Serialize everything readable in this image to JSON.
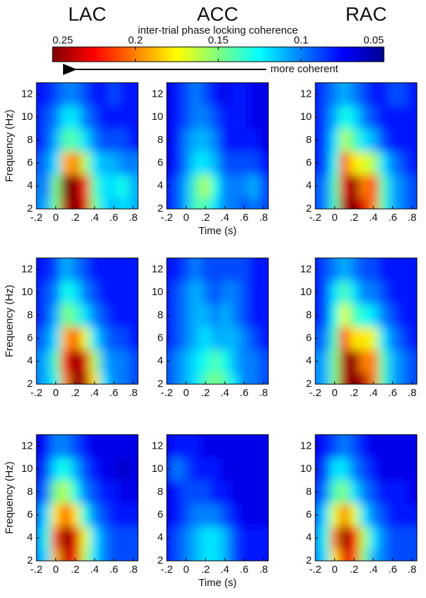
{
  "colorbar": {
    "title": "inter-trial phase locking coherence",
    "note": "more coherent",
    "clim": [
      0.25,
      0.05
    ],
    "ticks": [
      0.25,
      0.2,
      0.15,
      0.1,
      0.05
    ],
    "colormap": "jet"
  },
  "chart_data": [
    {
      "type": "heatmap",
      "title": "LAC",
      "ylabel": "Frequency (Hz)",
      "x": [
        -0.2,
        -0.1,
        0,
        0.1,
        0.2,
        0.3,
        0.4,
        0.5,
        0.6,
        0.7,
        0.8
      ],
      "y": [
        2,
        4,
        6,
        8,
        10,
        12
      ],
      "z": [
        [
          0.1,
          0.11,
          0.15,
          0.24,
          0.25,
          0.23,
          0.15,
          0.12,
          0.11,
          0.12,
          0.11
        ],
        [
          0.1,
          0.1,
          0.15,
          0.25,
          0.25,
          0.22,
          0.14,
          0.12,
          0.12,
          0.13,
          0.11
        ],
        [
          0.09,
          0.1,
          0.12,
          0.19,
          0.2,
          0.16,
          0.12,
          0.11,
          0.11,
          0.1,
          0.1
        ],
        [
          0.08,
          0.09,
          0.11,
          0.14,
          0.14,
          0.12,
          0.1,
          0.09,
          0.09,
          0.09,
          0.08
        ],
        [
          0.08,
          0.09,
          0.1,
          0.12,
          0.12,
          0.1,
          0.09,
          0.08,
          0.08,
          0.08,
          0.08
        ],
        [
          0.08,
          0.08,
          0.09,
          0.1,
          0.1,
          0.09,
          0.08,
          0.08,
          0.09,
          0.08,
          0.08
        ]
      ],
      "xlim": [
        -0.2,
        0.85
      ],
      "ylim": [
        2,
        13
      ],
      "xticks": [
        {
          "value": -0.2,
          "label": "-.2"
        },
        0,
        {
          "value": 0.2,
          "label": ".2"
        },
        {
          "value": 0.4,
          "label": ".4"
        },
        {
          "value": 0.6,
          "label": ".6"
        },
        {
          "value": 0.8,
          "label": ".8"
        }
      ],
      "yticks": [
        2,
        4,
        6,
        8,
        10,
        12
      ]
    },
    {
      "type": "heatmap",
      "title": "ACC",
      "xlabel": "Time (s)",
      "x": [
        -0.2,
        -0.1,
        0,
        0.1,
        0.2,
        0.3,
        0.4,
        0.5,
        0.6,
        0.7,
        0.8
      ],
      "y": [
        2,
        4,
        6,
        8,
        10,
        12
      ],
      "z": [
        [
          0.08,
          0.09,
          0.11,
          0.14,
          0.14,
          0.12,
          0.1,
          0.1,
          0.09,
          0.1,
          0.09
        ],
        [
          0.08,
          0.09,
          0.11,
          0.14,
          0.16,
          0.13,
          0.1,
          0.1,
          0.1,
          0.11,
          0.09
        ],
        [
          0.07,
          0.08,
          0.1,
          0.12,
          0.12,
          0.11,
          0.09,
          0.09,
          0.09,
          0.09,
          0.08
        ],
        [
          0.07,
          0.08,
          0.1,
          0.11,
          0.11,
          0.1,
          0.08,
          0.08,
          0.08,
          0.08,
          0.07
        ],
        [
          0.07,
          0.08,
          0.09,
          0.1,
          0.1,
          0.09,
          0.08,
          0.08,
          0.08,
          0.07,
          0.07
        ],
        [
          0.07,
          0.08,
          0.09,
          0.1,
          0.09,
          0.08,
          0.07,
          0.08,
          0.08,
          0.07,
          0.07
        ]
      ],
      "xlim": [
        -0.2,
        0.85
      ],
      "ylim": [
        2,
        13
      ],
      "xticks": [
        {
          "value": -0.2,
          "label": "-.2"
        },
        0,
        {
          "value": 0.2,
          "label": ".2"
        },
        {
          "value": 0.4,
          "label": ".4"
        },
        {
          "value": 0.6,
          "label": ".6"
        },
        {
          "value": 0.8,
          "label": ".8"
        }
      ],
      "yticks": [
        2,
        4,
        6,
        8,
        10,
        12
      ]
    },
    {
      "type": "heatmap",
      "title": "RAC",
      "x": [
        -0.2,
        -0.1,
        0,
        0.1,
        0.2,
        0.3,
        0.4,
        0.5,
        0.6,
        0.7,
        0.8
      ],
      "y": [
        2,
        4,
        6,
        8,
        10,
        12
      ],
      "z": [
        [
          0.09,
          0.1,
          0.14,
          0.24,
          0.25,
          0.23,
          0.2,
          0.14,
          0.11,
          0.1,
          0.09
        ],
        [
          0.09,
          0.1,
          0.14,
          0.23,
          0.25,
          0.2,
          0.21,
          0.14,
          0.11,
          0.1,
          0.09
        ],
        [
          0.08,
          0.09,
          0.13,
          0.21,
          0.18,
          0.17,
          0.16,
          0.12,
          0.1,
          0.09,
          0.08
        ],
        [
          0.08,
          0.09,
          0.12,
          0.16,
          0.14,
          0.12,
          0.11,
          0.09,
          0.08,
          0.08,
          0.08
        ],
        [
          0.08,
          0.09,
          0.11,
          0.13,
          0.12,
          0.1,
          0.09,
          0.08,
          0.08,
          0.08,
          0.08
        ],
        [
          0.08,
          0.09,
          0.1,
          0.11,
          0.1,
          0.09,
          0.08,
          0.08,
          0.09,
          0.09,
          0.08
        ]
      ],
      "xlim": [
        -0.2,
        0.85
      ],
      "ylim": [
        2,
        13
      ],
      "xticks": [
        {
          "value": -0.2,
          "label": "-.2"
        },
        0,
        {
          "value": 0.2,
          "label": ".2"
        },
        {
          "value": 0.4,
          "label": ".4"
        },
        {
          "value": 0.6,
          "label": ".6"
        },
        {
          "value": 0.8,
          "label": ".8"
        }
      ],
      "yticks": [
        2,
        4,
        6,
        8,
        10,
        12
      ]
    },
    {
      "type": "heatmap",
      "ylabel": "Frequency (Hz)",
      "x": [
        -0.2,
        -0.1,
        0,
        0.1,
        0.2,
        0.3,
        0.4,
        0.5,
        0.6,
        0.7,
        0.8
      ],
      "y": [
        2,
        4,
        6,
        8,
        10,
        12
      ],
      "z": [
        [
          0.1,
          0.11,
          0.13,
          0.2,
          0.25,
          0.24,
          0.18,
          0.12,
          0.1,
          0.1,
          0.09
        ],
        [
          0.1,
          0.11,
          0.14,
          0.22,
          0.25,
          0.23,
          0.16,
          0.11,
          0.1,
          0.1,
          0.09
        ],
        [
          0.09,
          0.1,
          0.12,
          0.19,
          0.21,
          0.17,
          0.12,
          0.1,
          0.09,
          0.09,
          0.08
        ],
        [
          0.08,
          0.09,
          0.11,
          0.15,
          0.14,
          0.12,
          0.1,
          0.09,
          0.08,
          0.08,
          0.08
        ],
        [
          0.08,
          0.09,
          0.1,
          0.13,
          0.12,
          0.1,
          0.09,
          0.08,
          0.08,
          0.08,
          0.08
        ],
        [
          0.08,
          0.08,
          0.09,
          0.11,
          0.1,
          0.09,
          0.08,
          0.08,
          0.08,
          0.08,
          0.08
        ]
      ],
      "xlim": [
        -0.2,
        0.85
      ],
      "ylim": [
        2,
        13
      ],
      "xticks": [
        {
          "value": -0.2,
          "label": "-.2"
        },
        0,
        {
          "value": 0.2,
          "label": ".2"
        },
        {
          "value": 0.4,
          "label": ".4"
        },
        {
          "value": 0.6,
          "label": ".6"
        },
        {
          "value": 0.8,
          "label": ".8"
        }
      ],
      "yticks": [
        2,
        4,
        6,
        8,
        10,
        12
      ]
    },
    {
      "type": "heatmap",
      "x": [
        -0.2,
        -0.1,
        0,
        0.1,
        0.2,
        0.3,
        0.4,
        0.5,
        0.6,
        0.7,
        0.8
      ],
      "y": [
        2,
        4,
        6,
        8,
        10,
        12
      ],
      "z": [
        [
          0.09,
          0.1,
          0.11,
          0.12,
          0.14,
          0.15,
          0.14,
          0.12,
          0.1,
          0.1,
          0.09
        ],
        [
          0.09,
          0.1,
          0.11,
          0.12,
          0.13,
          0.14,
          0.13,
          0.11,
          0.1,
          0.1,
          0.09
        ],
        [
          0.08,
          0.09,
          0.1,
          0.11,
          0.12,
          0.11,
          0.11,
          0.11,
          0.1,
          0.09,
          0.08
        ],
        [
          0.08,
          0.09,
          0.1,
          0.11,
          0.11,
          0.1,
          0.11,
          0.1,
          0.09,
          0.08,
          0.08
        ],
        [
          0.08,
          0.09,
          0.1,
          0.11,
          0.1,
          0.09,
          0.1,
          0.1,
          0.09,
          0.08,
          0.08
        ],
        [
          0.08,
          0.08,
          0.09,
          0.1,
          0.09,
          0.09,
          0.09,
          0.09,
          0.09,
          0.08,
          0.08
        ]
      ],
      "xlim": [
        -0.2,
        0.85
      ],
      "ylim": [
        2,
        13
      ],
      "xticks": [
        {
          "value": -0.2,
          "label": "-.2"
        },
        0,
        {
          "value": 0.2,
          "label": ".2"
        },
        {
          "value": 0.4,
          "label": ".4"
        },
        {
          "value": 0.6,
          "label": ".6"
        },
        {
          "value": 0.8,
          "label": ".8"
        }
      ],
      "yticks": [
        2,
        4,
        6,
        8,
        10,
        12
      ]
    },
    {
      "type": "heatmap",
      "x": [
        -0.2,
        -0.1,
        0,
        0.1,
        0.2,
        0.3,
        0.4,
        0.5,
        0.6,
        0.7,
        0.8
      ],
      "y": [
        2,
        4,
        6,
        8,
        10,
        12
      ],
      "z": [
        [
          0.1,
          0.11,
          0.15,
          0.24,
          0.25,
          0.24,
          0.2,
          0.14,
          0.11,
          0.1,
          0.09
        ],
        [
          0.1,
          0.11,
          0.15,
          0.24,
          0.25,
          0.2,
          0.2,
          0.14,
          0.11,
          0.1,
          0.09
        ],
        [
          0.09,
          0.1,
          0.14,
          0.22,
          0.18,
          0.18,
          0.17,
          0.12,
          0.1,
          0.09,
          0.08
        ],
        [
          0.08,
          0.09,
          0.13,
          0.17,
          0.14,
          0.13,
          0.12,
          0.1,
          0.09,
          0.08,
          0.08
        ],
        [
          0.08,
          0.09,
          0.12,
          0.14,
          0.12,
          0.1,
          0.1,
          0.09,
          0.08,
          0.08,
          0.08
        ],
        [
          0.08,
          0.09,
          0.1,
          0.11,
          0.1,
          0.09,
          0.09,
          0.08,
          0.08,
          0.08,
          0.08
        ]
      ],
      "xlim": [
        -0.2,
        0.85
      ],
      "ylim": [
        2,
        13
      ],
      "xticks": [
        {
          "value": -0.2,
          "label": "-.2"
        },
        0,
        {
          "value": 0.2,
          "label": ".2"
        },
        {
          "value": 0.4,
          "label": ".4"
        },
        {
          "value": 0.6,
          "label": ".6"
        },
        {
          "value": 0.8,
          "label": ".8"
        }
      ],
      "yticks": [
        2,
        4,
        6,
        8,
        10,
        12
      ]
    },
    {
      "type": "heatmap",
      "ylabel": "Frequency (Hz)",
      "x": [
        -0.2,
        -0.1,
        0,
        0.1,
        0.2,
        0.3,
        0.4,
        0.5,
        0.6,
        0.7,
        0.8
      ],
      "y": [
        2,
        4,
        6,
        8,
        10,
        12
      ],
      "z": [
        [
          0.1,
          0.12,
          0.19,
          0.24,
          0.22,
          0.16,
          0.12,
          0.1,
          0.09,
          0.09,
          0.09
        ],
        [
          0.1,
          0.13,
          0.21,
          0.25,
          0.23,
          0.17,
          0.12,
          0.1,
          0.09,
          0.09,
          0.09
        ],
        [
          0.09,
          0.12,
          0.18,
          0.21,
          0.18,
          0.13,
          0.1,
          0.09,
          0.08,
          0.08,
          0.08
        ],
        [
          0.08,
          0.1,
          0.15,
          0.16,
          0.13,
          0.1,
          0.09,
          0.08,
          0.08,
          0.07,
          0.07
        ],
        [
          0.07,
          0.09,
          0.12,
          0.13,
          0.11,
          0.09,
          0.08,
          0.07,
          0.07,
          0.06,
          0.07
        ],
        [
          0.07,
          0.08,
          0.1,
          0.1,
          0.09,
          0.08,
          0.07,
          0.07,
          0.07,
          0.07,
          0.07
        ]
      ],
      "xlim": [
        -0.2,
        0.85
      ],
      "ylim": [
        2,
        13
      ],
      "xticks": [
        {
          "value": -0.2,
          "label": "-.2"
        },
        0,
        {
          "value": 0.2,
          "label": ".2"
        },
        {
          "value": 0.4,
          "label": ".4"
        },
        {
          "value": 0.6,
          "label": ".6"
        },
        {
          "value": 0.8,
          "label": ".8"
        }
      ],
      "yticks": [
        2,
        4,
        6,
        8,
        10,
        12
      ]
    },
    {
      "type": "heatmap",
      "xlabel": "Time (s)",
      "x": [
        -0.2,
        -0.1,
        0,
        0.1,
        0.2,
        0.3,
        0.4,
        0.5,
        0.6,
        0.7,
        0.8
      ],
      "y": [
        2,
        4,
        6,
        8,
        10,
        12
      ],
      "z": [
        [
          0.08,
          0.09,
          0.1,
          0.11,
          0.12,
          0.12,
          0.11,
          0.09,
          0.08,
          0.08,
          0.08
        ],
        [
          0.08,
          0.09,
          0.1,
          0.11,
          0.12,
          0.12,
          0.11,
          0.09,
          0.08,
          0.08,
          0.08
        ],
        [
          0.07,
          0.08,
          0.09,
          0.1,
          0.1,
          0.1,
          0.09,
          0.08,
          0.07,
          0.07,
          0.07
        ],
        [
          0.07,
          0.08,
          0.09,
          0.09,
          0.09,
          0.08,
          0.08,
          0.07,
          0.07,
          0.07,
          0.07
        ],
        [
          0.07,
          0.1,
          0.09,
          0.08,
          0.08,
          0.08,
          0.07,
          0.07,
          0.07,
          0.07,
          0.07
        ],
        [
          0.07,
          0.08,
          0.08,
          0.08,
          0.07,
          0.07,
          0.07,
          0.07,
          0.07,
          0.07,
          0.07
        ]
      ],
      "xlim": [
        -0.2,
        0.85
      ],
      "ylim": [
        2,
        13
      ],
      "xticks": [
        {
          "value": -0.2,
          "label": "-.2"
        },
        0,
        {
          "value": 0.2,
          "label": ".2"
        },
        {
          "value": 0.4,
          "label": ".4"
        },
        {
          "value": 0.6,
          "label": ".6"
        },
        {
          "value": 0.8,
          "label": ".8"
        }
      ],
      "yticks": [
        2,
        4,
        6,
        8,
        10,
        12
      ]
    },
    {
      "type": "heatmap",
      "x": [
        -0.2,
        -0.1,
        0,
        0.1,
        0.2,
        0.3,
        0.4,
        0.5,
        0.6,
        0.7,
        0.8
      ],
      "y": [
        2,
        4,
        6,
        8,
        10,
        12
      ],
      "z": [
        [
          0.1,
          0.12,
          0.18,
          0.23,
          0.21,
          0.15,
          0.11,
          0.1,
          0.09,
          0.09,
          0.09
        ],
        [
          0.1,
          0.13,
          0.2,
          0.25,
          0.22,
          0.16,
          0.12,
          0.1,
          0.09,
          0.09,
          0.09
        ],
        [
          0.09,
          0.12,
          0.17,
          0.2,
          0.17,
          0.12,
          0.1,
          0.09,
          0.08,
          0.08,
          0.08
        ],
        [
          0.08,
          0.1,
          0.14,
          0.15,
          0.12,
          0.1,
          0.09,
          0.08,
          0.08,
          0.08,
          0.07
        ],
        [
          0.07,
          0.09,
          0.12,
          0.12,
          0.1,
          0.09,
          0.08,
          0.07,
          0.07,
          0.07,
          0.07
        ],
        [
          0.07,
          0.08,
          0.09,
          0.1,
          0.09,
          0.08,
          0.07,
          0.07,
          0.07,
          0.07,
          0.07
        ]
      ],
      "xlim": [
        -0.2,
        0.85
      ],
      "ylim": [
        2,
        13
      ],
      "xticks": [
        {
          "value": -0.2,
          "label": "-.2"
        },
        0,
        {
          "value": 0.2,
          "label": ".2"
        },
        {
          "value": 0.4,
          "label": ".4"
        },
        {
          "value": 0.6,
          "label": ".6"
        },
        {
          "value": 0.8,
          "label": ".8"
        }
      ],
      "yticks": [
        2,
        4,
        6,
        8,
        10,
        12
      ]
    }
  ]
}
